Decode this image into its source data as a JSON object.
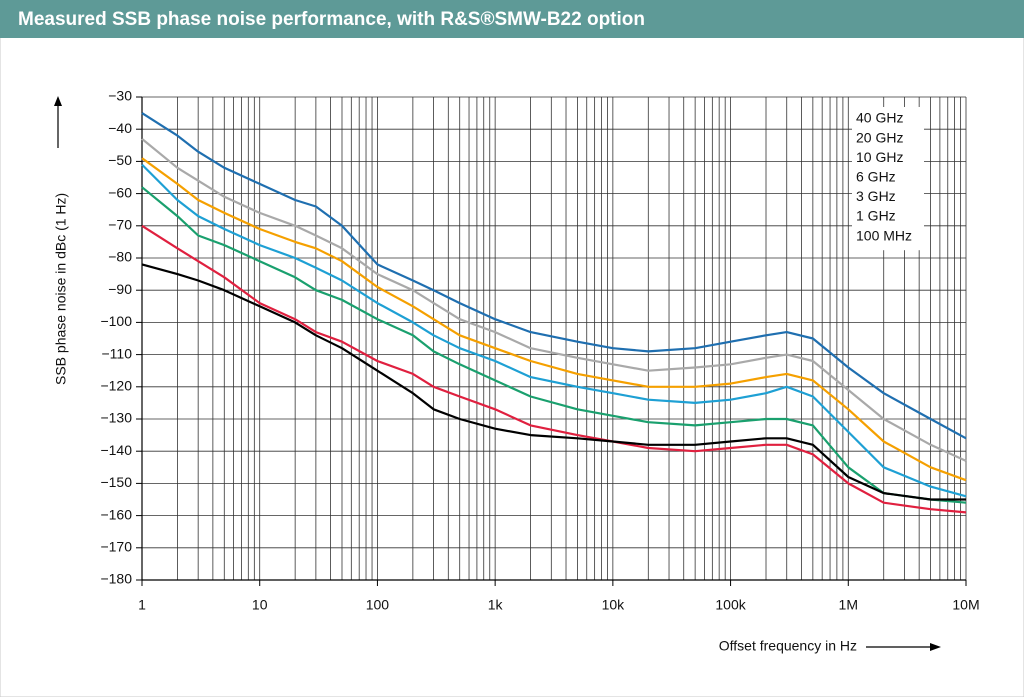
{
  "chart_data": {
    "type": "line",
    "title": "Measured SSB phase noise performance, with R&S®SMW-B22 option",
    "x_label": "Offset frequency in Hz",
    "y_label": "SSB phase noise in dBc (1 Hz)",
    "x_scale": "log",
    "grid": true,
    "legend": "top-right",
    "x": [
      1,
      2,
      3,
      5,
      10,
      20,
      30,
      50,
      100,
      200,
      300,
      500,
      1000,
      2000,
      5000,
      10000,
      20000,
      50000,
      100000,
      200000,
      300000,
      500000,
      1000000,
      2000000,
      5000000,
      10000000
    ],
    "xlim": [
      1,
      10000000
    ],
    "xticks": [
      1,
      10,
      100,
      {
        "value": 1000,
        "label": "1k"
      },
      {
        "value": 10000,
        "label": "10k"
      },
      {
        "value": 100000,
        "label": "100k"
      },
      {
        "value": 1000000,
        "label": "1M"
      },
      {
        "value": 10000000,
        "label": "10M"
      }
    ],
    "ylim": [
      -180,
      -30
    ],
    "yticks": [
      {
        "value": -180,
        "label": "−180"
      },
      {
        "value": -170,
        "label": "−170"
      },
      {
        "value": -160,
        "label": "−160"
      },
      {
        "value": -150,
        "label": "−150"
      },
      {
        "value": -140,
        "label": "−140"
      },
      {
        "value": -130,
        "label": "−130"
      },
      {
        "value": -120,
        "label": "−120"
      },
      {
        "value": -110,
        "label": "−110"
      },
      {
        "value": -100,
        "label": "−100"
      },
      {
        "value": -90,
        "label": "−90"
      },
      {
        "value": -80,
        "label": "−80"
      },
      {
        "value": -70,
        "label": "−70"
      },
      {
        "value": -60,
        "label": "−60"
      },
      {
        "value": -50,
        "label": "−50"
      },
      {
        "value": -40,
        "label": "−40"
      },
      {
        "value": -30,
        "label": "−30"
      }
    ],
    "series": [
      {
        "name": "40 GHz",
        "color": "#1f6fb0",
        "values": [
          -35,
          -42,
          -47,
          -52,
          -57,
          -62,
          -64,
          -70,
          -82,
          -87,
          -90,
          -94,
          -99,
          -103,
          -106,
          -108,
          -109,
          -108,
          -106,
          -104,
          -103,
          -105,
          -114,
          -122,
          -130,
          -136
        ]
      },
      {
        "name": "20 GHz",
        "color": "#a9a9a9",
        "values": [
          -43,
          -52,
          -56,
          -61,
          -66,
          -70,
          -73,
          -77,
          -85,
          -90,
          -94,
          -99,
          -103,
          -108,
          -111,
          -113,
          -115,
          -114,
          -113,
          -111,
          -110,
          -112,
          -121,
          -130,
          -138,
          -143
        ]
      },
      {
        "name": "10 GHz",
        "color": "#f5a000",
        "values": [
          -49,
          -57,
          -62,
          -66,
          -71,
          -75,
          -77,
          -81,
          -89,
          -95,
          -99,
          -104,
          -108,
          -112,
          -116,
          -118,
          -120,
          -120,
          -119,
          -117,
          -116,
          -118,
          -127,
          -137,
          -145,
          -149
        ]
      },
      {
        "name": "6 GHz",
        "color": "#1ea0d4",
        "values": [
          -51,
          -62,
          -67,
          -71,
          -76,
          -80,
          -83,
          -87,
          -94,
          -100,
          -104,
          -108,
          -112,
          -117,
          -120,
          -122,
          -124,
          -125,
          -124,
          -122,
          -120,
          -123,
          -134,
          -145,
          -151,
          -154
        ]
      },
      {
        "name": "3 GHz",
        "color": "#1aa06e",
        "values": [
          -58,
          -67,
          -73,
          -76,
          -81,
          -86,
          -90,
          -93,
          -99,
          -104,
          -109,
          -113,
          -118,
          -123,
          -127,
          -129,
          -131,
          -132,
          -131,
          -130,
          -130,
          -132,
          -145,
          -153,
          -155,
          -156
        ]
      },
      {
        "name": "1 GHz",
        "color": "#e0203f",
        "values": [
          -70,
          -77,
          -81,
          -86,
          -94,
          -99,
          -103,
          -106,
          -112,
          -116,
          -120,
          -123,
          -127,
          -132,
          -135,
          -137,
          -139,
          -140,
          -139,
          -138,
          -138,
          -141,
          -150,
          -156,
          -158,
          -159
        ]
      },
      {
        "name": "100 MHz",
        "color": "#000000",
        "values": [
          -82,
          -85,
          -87,
          -90,
          -95,
          -100,
          -104,
          -108,
          -115,
          -122,
          -127,
          -130,
          -133,
          -135,
          -136,
          -137,
          -138,
          -138,
          -137,
          -136,
          -136,
          -138,
          -148,
          -153,
          -155,
          -155
        ]
      }
    ]
  }
}
